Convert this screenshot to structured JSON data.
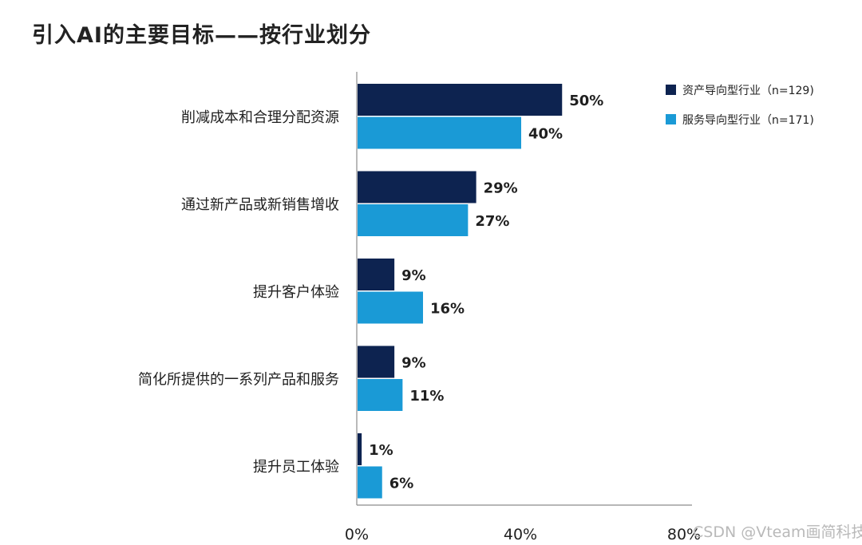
{
  "title": "引入AI的主要目标——按行业划分",
  "watermark": "CSDN @Vteam画简科技",
  "chart_data": {
    "type": "bar",
    "orientation": "horizontal",
    "title": "引入AI的主要目标——按行业划分",
    "categories": [
      "削减成本和合理分配资源",
      "通过新产品或新销售增收",
      "提升客户体验",
      "简化所提供的一系列产品和服务",
      "提升员工体验"
    ],
    "series": [
      {
        "name": "资产导向型行业（n=129)",
        "color": "#0d2350",
        "values": [
          50,
          29,
          9,
          9,
          1
        ],
        "labels": [
          "50%",
          "29%",
          "9%",
          "9%",
          "1%"
        ]
      },
      {
        "name": "服务导向型行业（n=171)",
        "color": "#1a9ad6",
        "values": [
          40,
          27,
          16,
          11,
          6
        ],
        "labels": [
          "40%",
          "27%",
          "16%",
          "11%",
          "6%"
        ]
      }
    ],
    "xlim": [
      0,
      80
    ],
    "xticks": [
      0,
      40,
      80
    ],
    "xtick_labels": [
      "0%",
      "40%",
      "80%"
    ],
    "legend_position": "top-right",
    "grid": false
  }
}
